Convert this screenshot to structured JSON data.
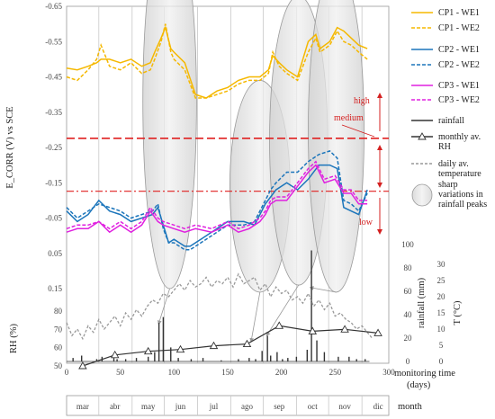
{
  "chart_data": {
    "type": "line",
    "xlabel": "monitoring time (days)",
    "xlim": [
      0,
      300
    ],
    "x_ticks": [
      "0",
      "50",
      "100",
      "150",
      "200",
      "250",
      "300"
    ],
    "month_label": "month",
    "months": [
      {
        "label": "mar",
        "day": 15
      },
      {
        "label": "abr",
        "day": 45
      },
      {
        "label": "may",
        "day": 76
      },
      {
        "label": "jun",
        "day": 106
      },
      {
        "label": "jul",
        "day": 137
      },
      {
        "label": "ago",
        "day": 168
      },
      {
        "label": "sep",
        "day": 198
      },
      {
        "label": "oct",
        "day": 229
      },
      {
        "label": "nov",
        "day": 259
      },
      {
        "label": "dic",
        "day": 290
      }
    ],
    "month_bounds": [
      30,
      61,
      91,
      122,
      153,
      183,
      214,
      244,
      275
    ],
    "ylabel_main": "E_CORR (V) vs SCE",
    "ylim_main": [
      0.15,
      -0.65
    ],
    "y_ticks_main": [
      "-0.65",
      "-0.55",
      "-0.45",
      "-0.35",
      "-0.25",
      "-0.15",
      "-0.05",
      "0.05",
      "0.15"
    ],
    "thresholds": [
      -0.276,
      -0.126
    ],
    "zones": {
      "high": "high",
      "medium": "medium",
      "low": "low"
    },
    "ylabel_rh": "RH (%)",
    "y_ticks_rh": [
      "50",
      "60",
      "70",
      "80"
    ],
    "ylabel_rain": "rainfall (mm)",
    "y_ticks_rain": [
      "0",
      "20",
      "40",
      "60",
      "80",
      "100"
    ],
    "ylabel_temp": "T (°C)",
    "y_ticks_temp": [
      "0",
      "5",
      "10",
      "15",
      "20",
      "25",
      "30"
    ],
    "legend": [
      "CP1 - WE1",
      "CP1 - WE2",
      "CP2 - WE1",
      "CP2 - WE2",
      "CP3 - WE1",
      "CP3 - WE2",
      "rainfall",
      "monthly av. RH",
      "daily av. temperature",
      "sharp variations in rainfall peaks"
    ],
    "colors": {
      "CP1": "#f5b800",
      "CP2": "#1b75bb",
      "CP3": "#e020e0",
      "threshold": "#e02020",
      "rain": "#333333",
      "rh": "#333333",
      "temp": "#999999"
    },
    "series": [
      {
        "name": "CP1 - WE1",
        "x": [
          0,
          10,
          20,
          28,
          32,
          40,
          50,
          60,
          70,
          78,
          82,
          88,
          92,
          97,
          100,
          110,
          120,
          130,
          140,
          150,
          160,
          170,
          180,
          188,
          192,
          198,
          205,
          215,
          225,
          232,
          236,
          245,
          252,
          258,
          265,
          272,
          280
        ],
        "y": [
          -0.475,
          -0.47,
          -0.48,
          -0.49,
          -0.5,
          -0.5,
          -0.49,
          -0.5,
          -0.48,
          -0.49,
          -0.52,
          -0.56,
          -0.59,
          -0.53,
          -0.52,
          -0.49,
          -0.4,
          -0.39,
          -0.41,
          -0.42,
          -0.44,
          -0.45,
          -0.45,
          -0.47,
          -0.51,
          -0.49,
          -0.47,
          -0.45,
          -0.55,
          -0.57,
          -0.53,
          -0.55,
          -0.59,
          -0.58,
          -0.56,
          -0.54,
          -0.53
        ]
      },
      {
        "name": "CP1 - WE2",
        "x": [
          0,
          10,
          20,
          28,
          32,
          40,
          50,
          60,
          70,
          78,
          82,
          88,
          92,
          97,
          100,
          110,
          120,
          130,
          140,
          150,
          160,
          170,
          180,
          188,
          192,
          198,
          205,
          215,
          225,
          232,
          236,
          245,
          252,
          258,
          265,
          272,
          280
        ],
        "y": [
          -0.45,
          -0.44,
          -0.47,
          -0.5,
          -0.54,
          -0.48,
          -0.47,
          -0.49,
          -0.46,
          -0.47,
          -0.5,
          -0.55,
          -0.6,
          -0.52,
          -0.5,
          -0.47,
          -0.39,
          -0.39,
          -0.4,
          -0.41,
          -0.43,
          -0.44,
          -0.44,
          -0.46,
          -0.52,
          -0.48,
          -0.46,
          -0.44,
          -0.52,
          -0.56,
          -0.52,
          -0.54,
          -0.58,
          -0.55,
          -0.54,
          -0.52,
          -0.5
        ]
      },
      {
        "name": "CP2 - WE1",
        "x": [
          0,
          10,
          20,
          30,
          40,
          50,
          60,
          70,
          80,
          85,
          90,
          95,
          100,
          110,
          115,
          125,
          140,
          150,
          165,
          175,
          180,
          185,
          190,
          195,
          205,
          215,
          225,
          235,
          245,
          252,
          258,
          265,
          272,
          280
        ],
        "y": [
          -0.07,
          -0.04,
          -0.06,
          -0.1,
          -0.07,
          -0.06,
          -0.04,
          -0.05,
          -0.06,
          -0.08,
          -0.03,
          0.02,
          0.01,
          0.03,
          0.03,
          0.01,
          -0.02,
          -0.04,
          -0.04,
          -0.03,
          -0.06,
          -0.09,
          -0.11,
          -0.13,
          -0.15,
          -0.13,
          -0.16,
          -0.2,
          -0.2,
          -0.19,
          -0.08,
          -0.07,
          -0.06,
          -0.13
        ]
      },
      {
        "name": "CP2 - WE2",
        "x": [
          0,
          10,
          20,
          30,
          40,
          50,
          60,
          70,
          80,
          85,
          90,
          95,
          100,
          110,
          115,
          125,
          140,
          150,
          165,
          175,
          180,
          185,
          190,
          195,
          205,
          215,
          225,
          235,
          245,
          252,
          258,
          265,
          272,
          280
        ],
        "y": [
          -0.08,
          -0.05,
          -0.07,
          -0.09,
          -0.08,
          -0.07,
          -0.05,
          -0.06,
          -0.07,
          -0.09,
          -0.02,
          0.02,
          0.02,
          0.04,
          0.04,
          0.02,
          -0.01,
          -0.03,
          -0.03,
          -0.04,
          -0.07,
          -0.1,
          -0.13,
          -0.15,
          -0.18,
          -0.18,
          -0.21,
          -0.23,
          -0.24,
          -0.22,
          -0.1,
          -0.09,
          -0.07,
          -0.12
        ]
      },
      {
        "name": "CP3 - WE1",
        "x": [
          0,
          10,
          20,
          30,
          40,
          50,
          60,
          70,
          78,
          85,
          90,
          100,
          110,
          120,
          135,
          150,
          160,
          170,
          180,
          185,
          190,
          195,
          205,
          215,
          225,
          232,
          240,
          250,
          258,
          265,
          272,
          280
        ],
        "y": [
          -0.01,
          -0.02,
          -0.02,
          -0.04,
          -0.01,
          -0.03,
          -0.01,
          -0.03,
          -0.07,
          -0.04,
          -0.03,
          -0.02,
          -0.01,
          -0.02,
          -0.01,
          -0.03,
          -0.01,
          -0.02,
          -0.04,
          -0.06,
          -0.09,
          -0.1,
          -0.1,
          -0.14,
          -0.18,
          -0.2,
          -0.15,
          -0.16,
          -0.12,
          -0.12,
          -0.09,
          -0.09
        ]
      },
      {
        "name": "CP3 - WE2",
        "x": [
          0,
          10,
          20,
          30,
          40,
          50,
          60,
          70,
          78,
          85,
          90,
          100,
          110,
          120,
          135,
          150,
          160,
          170,
          180,
          185,
          190,
          195,
          205,
          215,
          225,
          232,
          240,
          250,
          258,
          265,
          272,
          280
        ],
        "y": [
          -0.02,
          -0.03,
          -0.03,
          -0.04,
          -0.02,
          -0.04,
          -0.02,
          -0.04,
          -0.08,
          -0.05,
          -0.04,
          -0.03,
          -0.02,
          -0.03,
          -0.02,
          -0.04,
          -0.02,
          -0.03,
          -0.05,
          -0.07,
          -0.1,
          -0.11,
          -0.11,
          -0.15,
          -0.19,
          -0.21,
          -0.16,
          -0.17,
          -0.13,
          -0.13,
          -0.1,
          -0.1
        ]
      },
      {
        "name": "rainfall",
        "x": [
          6,
          14,
          28,
          33,
          44,
          47,
          55,
          65,
          76,
          82,
          86,
          90,
          97,
          104,
          116,
          127,
          144,
          160,
          170,
          176,
          182,
          187,
          190,
          196,
          201,
          206,
          214,
          224,
          228,
          233,
          240,
          253,
          263,
          270,
          278
        ],
        "y": [
          3,
          5,
          2,
          4,
          3,
          2,
          2,
          3,
          4,
          8,
          33,
          38,
          12,
          3,
          2,
          3,
          1,
          2,
          3,
          2,
          9,
          22,
          5,
          8,
          2,
          3,
          4,
          10,
          95,
          18,
          8,
          4,
          4,
          2,
          2
        ]
      },
      {
        "name": "monthly av. RH",
        "x": [
          15,
          45,
          76,
          106,
          137,
          168,
          198,
          229,
          259,
          290
        ],
        "y": [
          50,
          56,
          58,
          59,
          61,
          62,
          72,
          69,
          70,
          68
        ]
      },
      {
        "name": "daily av. temperature",
        "x": [
          0,
          5,
          10,
          15,
          20,
          25,
          30,
          35,
          40,
          45,
          50,
          55,
          60,
          65,
          70,
          75,
          80,
          85,
          90,
          95,
          100,
          105,
          110,
          115,
          120,
          125,
          130,
          135,
          140,
          145,
          150,
          155,
          160,
          165,
          170,
          175,
          180,
          185,
          190,
          195,
          200,
          205,
          210,
          215,
          220,
          225,
          230,
          235,
          240,
          245,
          250,
          255,
          260,
          265,
          270,
          275,
          280,
          285
        ],
        "y": [
          12,
          8,
          10,
          7,
          11,
          9,
          13,
          10,
          12,
          14,
          11,
          15,
          13,
          16,
          14,
          17,
          19,
          18,
          21,
          20,
          22,
          24,
          22,
          25,
          23,
          24,
          26,
          23,
          25,
          24,
          26,
          23,
          27,
          24,
          25,
          26,
          22,
          24,
          20,
          23,
          21,
          22,
          19,
          20,
          18,
          21,
          17,
          19,
          16,
          18,
          14,
          15,
          13,
          12,
          10,
          11,
          9,
          7
        ]
      }
    ],
    "ellipses": [
      {
        "x": 96,
        "y": -0.38,
        "rx": 25,
        "ry": 0.53
      },
      {
        "x": 180,
        "y": -0.14,
        "rx": 28,
        "ry": 0.3
      },
      {
        "x": 216,
        "y": -0.27,
        "rx": 27,
        "ry": 0.41
      },
      {
        "x": 251,
        "y": -0.3,
        "rx": 26,
        "ry": 0.46
      }
    ]
  }
}
